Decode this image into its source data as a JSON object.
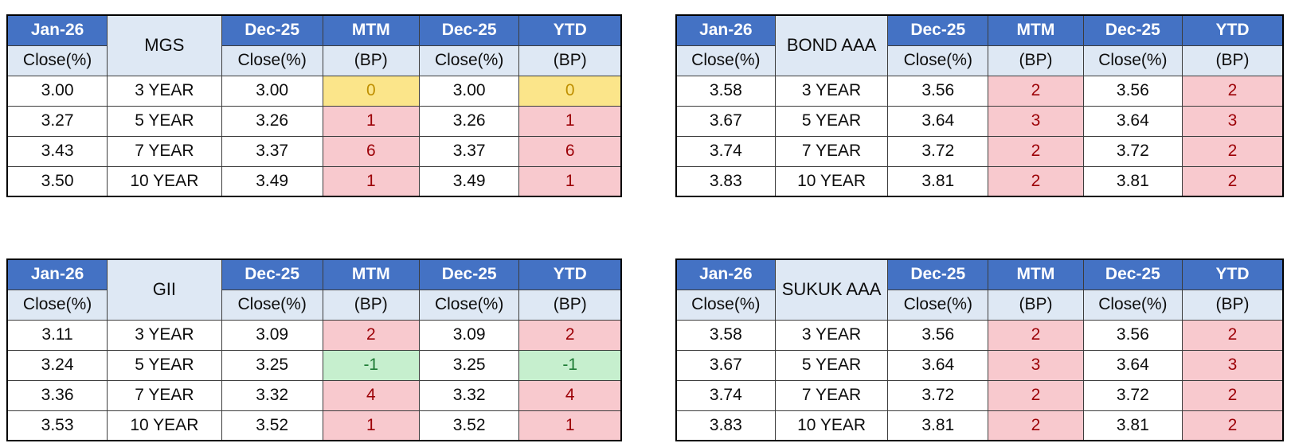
{
  "colors": {
    "header_bg": "#4472C4",
    "header_text": "#FFFFFF",
    "subheader_bg": "#DEE8F4",
    "bp_up_bg": "#F8C9CE",
    "bp_up_text": "#9C0006",
    "bp_zero_bg": "#FBE58A",
    "bp_zero_text": "#BF8F00",
    "bp_down_bg": "#C6EFCE",
    "bp_down_text": "#1E7B34"
  },
  "chart_data": [
    {
      "type": "table",
      "instrument": "MGS",
      "position": "top-left",
      "headers": {
        "jan": {
          "top": "Jan-26",
          "sub": "Close(%)"
        },
        "dec_mtm": {
          "top": "Dec-25",
          "sub": "Close(%)"
        },
        "mtm": {
          "top": "MTM",
          "sub": "(BP)"
        },
        "dec_ytd": {
          "top": "Dec-25",
          "sub": "Close(%)"
        },
        "ytd": {
          "top": "YTD",
          "sub": "(BP)"
        }
      },
      "rows": [
        {
          "jan_close": "3.00",
          "tenor": "3 YEAR",
          "dec_close_mtm": "3.00",
          "mtm_bp": "0",
          "mtm_state": "zero",
          "dec_close_ytd": "3.00",
          "ytd_bp": "0",
          "ytd_state": "zero"
        },
        {
          "jan_close": "3.27",
          "tenor": "5 YEAR",
          "dec_close_mtm": "3.26",
          "mtm_bp": "1",
          "mtm_state": "up",
          "dec_close_ytd": "3.26",
          "ytd_bp": "1",
          "ytd_state": "up"
        },
        {
          "jan_close": "3.43",
          "tenor": "7 YEAR",
          "dec_close_mtm": "3.37",
          "mtm_bp": "6",
          "mtm_state": "up",
          "dec_close_ytd": "3.37",
          "ytd_bp": "6",
          "ytd_state": "up"
        },
        {
          "jan_close": "3.50",
          "tenor": "10 YEAR",
          "dec_close_mtm": "3.49",
          "mtm_bp": "1",
          "mtm_state": "up",
          "dec_close_ytd": "3.49",
          "ytd_bp": "1",
          "ytd_state": "up"
        }
      ]
    },
    {
      "type": "table",
      "instrument": "BOND AAA",
      "position": "top-right",
      "headers": {
        "jan": {
          "top": "Jan-26",
          "sub": "Close(%)"
        },
        "dec_mtm": {
          "top": "Dec-25",
          "sub": "Close(%)"
        },
        "mtm": {
          "top": "MTM",
          "sub": "(BP)"
        },
        "dec_ytd": {
          "top": "Dec-25",
          "sub": "Close(%)"
        },
        "ytd": {
          "top": "YTD",
          "sub": "(BP)"
        }
      },
      "rows": [
        {
          "jan_close": "3.58",
          "tenor": "3 YEAR",
          "dec_close_mtm": "3.56",
          "mtm_bp": "2",
          "mtm_state": "up",
          "dec_close_ytd": "3.56",
          "ytd_bp": "2",
          "ytd_state": "up"
        },
        {
          "jan_close": "3.67",
          "tenor": "5 YEAR",
          "dec_close_mtm": "3.64",
          "mtm_bp": "3",
          "mtm_state": "up",
          "dec_close_ytd": "3.64",
          "ytd_bp": "3",
          "ytd_state": "up"
        },
        {
          "jan_close": "3.74",
          "tenor": "7 YEAR",
          "dec_close_mtm": "3.72",
          "mtm_bp": "2",
          "mtm_state": "up",
          "dec_close_ytd": "3.72",
          "ytd_bp": "2",
          "ytd_state": "up"
        },
        {
          "jan_close": "3.83",
          "tenor": "10 YEAR",
          "dec_close_mtm": "3.81",
          "mtm_bp": "2",
          "mtm_state": "up",
          "dec_close_ytd": "3.81",
          "ytd_bp": "2",
          "ytd_state": "up"
        }
      ]
    },
    {
      "type": "table",
      "instrument": "GII",
      "position": "bottom-left",
      "headers": {
        "jan": {
          "top": "Jan-26",
          "sub": "Close(%)"
        },
        "dec_mtm": {
          "top": "Dec-25",
          "sub": "Close(%)"
        },
        "mtm": {
          "top": "MTM",
          "sub": "(BP)"
        },
        "dec_ytd": {
          "top": "Dec-25",
          "sub": "Close(%)"
        },
        "ytd": {
          "top": "YTD",
          "sub": "(BP)"
        }
      },
      "rows": [
        {
          "jan_close": "3.11",
          "tenor": "3 YEAR",
          "dec_close_mtm": "3.09",
          "mtm_bp": "2",
          "mtm_state": "up",
          "dec_close_ytd": "3.09",
          "ytd_bp": "2",
          "ytd_state": "up"
        },
        {
          "jan_close": "3.24",
          "tenor": "5 YEAR",
          "dec_close_mtm": "3.25",
          "mtm_bp": "-1",
          "mtm_state": "down",
          "dec_close_ytd": "3.25",
          "ytd_bp": "-1",
          "ytd_state": "down"
        },
        {
          "jan_close": "3.36",
          "tenor": "7 YEAR",
          "dec_close_mtm": "3.32",
          "mtm_bp": "4",
          "mtm_state": "up",
          "dec_close_ytd": "3.32",
          "ytd_bp": "4",
          "ytd_state": "up"
        },
        {
          "jan_close": "3.53",
          "tenor": "10 YEAR",
          "dec_close_mtm": "3.52",
          "mtm_bp": "1",
          "mtm_state": "up",
          "dec_close_ytd": "3.52",
          "ytd_bp": "1",
          "ytd_state": "up"
        }
      ]
    },
    {
      "type": "table",
      "instrument": "SUKUK AAA",
      "position": "bottom-right",
      "headers": {
        "jan": {
          "top": "Jan-26",
          "sub": "Close(%)"
        },
        "dec_mtm": {
          "top": "Dec-25",
          "sub": "Close(%)"
        },
        "mtm": {
          "top": "MTM",
          "sub": "(BP)"
        },
        "dec_ytd": {
          "top": "Dec-25",
          "sub": "Close(%)"
        },
        "ytd": {
          "top": "YTD",
          "sub": "(BP)"
        }
      },
      "rows": [
        {
          "jan_close": "3.58",
          "tenor": "3 YEAR",
          "dec_close_mtm": "3.56",
          "mtm_bp": "2",
          "mtm_state": "up",
          "dec_close_ytd": "3.56",
          "ytd_bp": "2",
          "ytd_state": "up"
        },
        {
          "jan_close": "3.67",
          "tenor": "5 YEAR",
          "dec_close_mtm": "3.64",
          "mtm_bp": "3",
          "mtm_state": "up",
          "dec_close_ytd": "3.64",
          "ytd_bp": "3",
          "ytd_state": "up"
        },
        {
          "jan_close": "3.74",
          "tenor": "7 YEAR",
          "dec_close_mtm": "3.72",
          "mtm_bp": "2",
          "mtm_state": "up",
          "dec_close_ytd": "3.72",
          "ytd_bp": "2",
          "ytd_state": "up"
        },
        {
          "jan_close": "3.83",
          "tenor": "10 YEAR",
          "dec_close_mtm": "3.81",
          "mtm_bp": "2",
          "mtm_state": "up",
          "dec_close_ytd": "3.81",
          "ytd_bp": "2",
          "ytd_state": "up"
        }
      ]
    }
  ]
}
